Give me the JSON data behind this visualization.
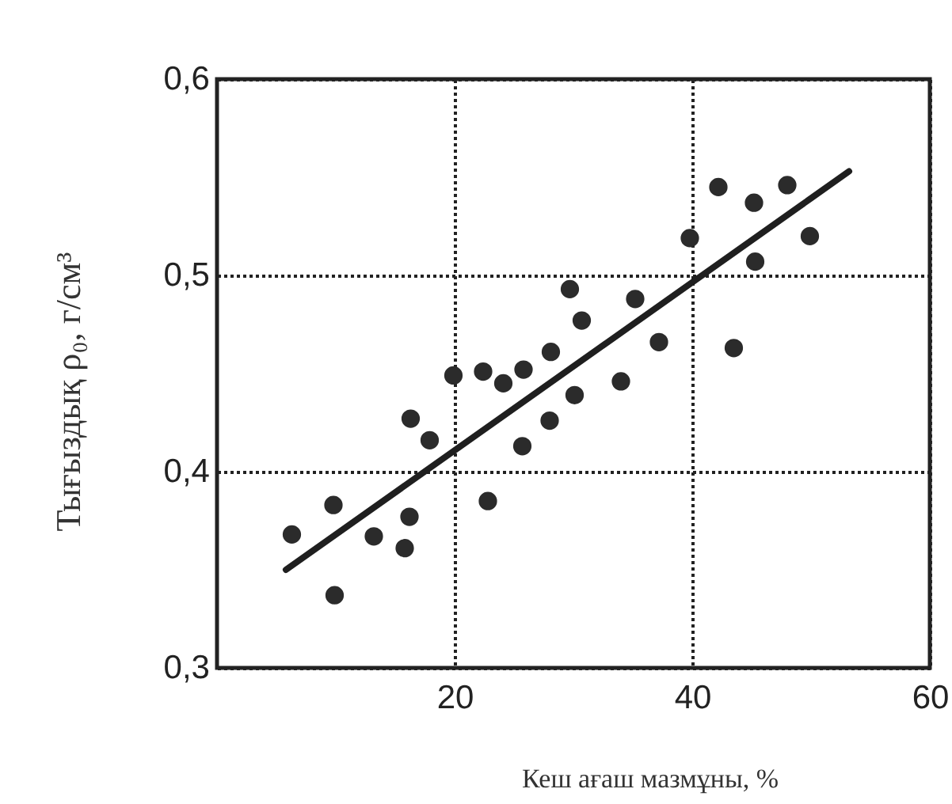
{
  "chart_data": {
    "type": "scatter",
    "xlabel": "Кеш ағаш мазмұны, %",
    "ylabel": "Тығыздық ρ₀, г/см³",
    "xlim": [
      0,
      60
    ],
    "ylim": [
      0.3,
      0.6
    ],
    "xticks": [
      20,
      40,
      60
    ],
    "yticks": [
      {
        "value": 0.3,
        "label": "0,3"
      },
      {
        "value": 0.4,
        "label": "0,4"
      },
      {
        "value": 0.5,
        "label": "0,5"
      },
      {
        "value": 0.6,
        "label": "0,6"
      }
    ],
    "grid": true,
    "series": [
      {
        "marker": "circle",
        "color": "#2b2b2b",
        "x": [
          6.3,
          9.8,
          9.9,
          13.2,
          15.8,
          16.2,
          16.3,
          17.9,
          19.9,
          22.4,
          22.8,
          24.1,
          25.7,
          25.8,
          28.0,
          28.1,
          29.7,
          30.1,
          30.7,
          34.0,
          35.2,
          37.2,
          39.8,
          42.2,
          43.5,
          45.2,
          45.3,
          48.0,
          49.9
        ],
        "values": [
          0.368,
          0.383,
          0.337,
          0.367,
          0.361,
          0.377,
          0.427,
          0.416,
          0.449,
          0.451,
          0.385,
          0.445,
          0.413,
          0.452,
          0.426,
          0.461,
          0.493,
          0.439,
          0.477,
          0.446,
          0.488,
          0.466,
          0.519,
          0.545,
          0.463,
          0.537,
          0.507,
          0.546,
          0.52
        ]
      },
      {
        "type": "line",
        "color": "#1f1f1f",
        "x": [
          5.8,
          53.2
        ],
        "values": [
          0.35,
          0.553
        ]
      }
    ]
  }
}
